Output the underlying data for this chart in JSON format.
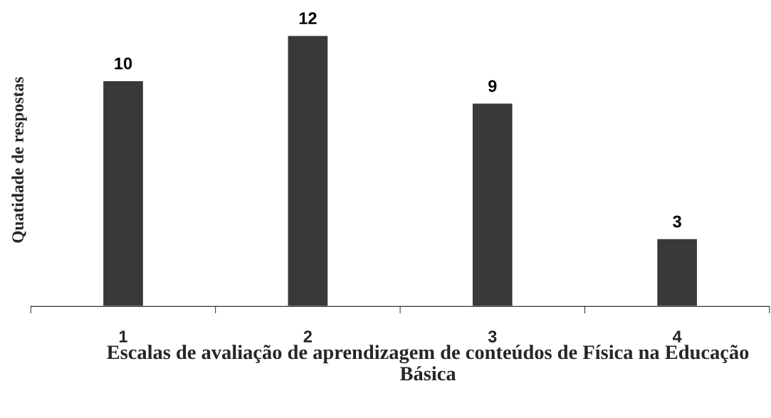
{
  "chart_data": {
    "type": "bar",
    "categories": [
      "1",
      "2",
      "3",
      "4"
    ],
    "values": [
      10,
      12,
      9,
      3
    ],
    "color": "#3a3838",
    "data_labels": true,
    "xlabel": "Escalas de avaliação de aprendizagem de conteúdos de Física na Educação Básica",
    "ylabel": "Quatidade de respostas",
    "grid": false,
    "legend": false
  }
}
